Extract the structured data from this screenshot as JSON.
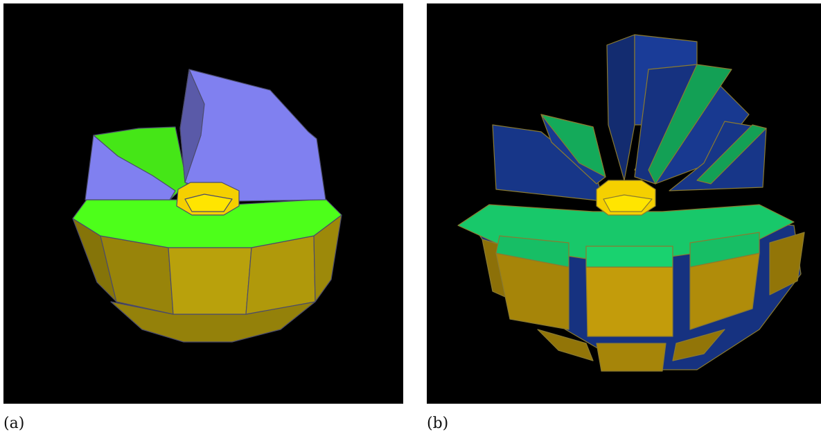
{
  "panels": [
    {
      "id": "a",
      "caption": "(a)",
      "colors": {
        "background": "#000000",
        "top_faces": "#4dff1a",
        "side_faces": "#b9a10c",
        "raised_sector": "#8080f0",
        "core": "#f5d000",
        "edges": "#4b4b6b"
      }
    },
    {
      "id": "b",
      "caption": "(b)",
      "colors": {
        "background": "#000000",
        "top_faces": "#18c86a",
        "side_faces": "#c39c0b",
        "raised_sector": "#1b3fa0",
        "core": "#f5d000",
        "edges": "#8a7a30"
      }
    }
  ]
}
